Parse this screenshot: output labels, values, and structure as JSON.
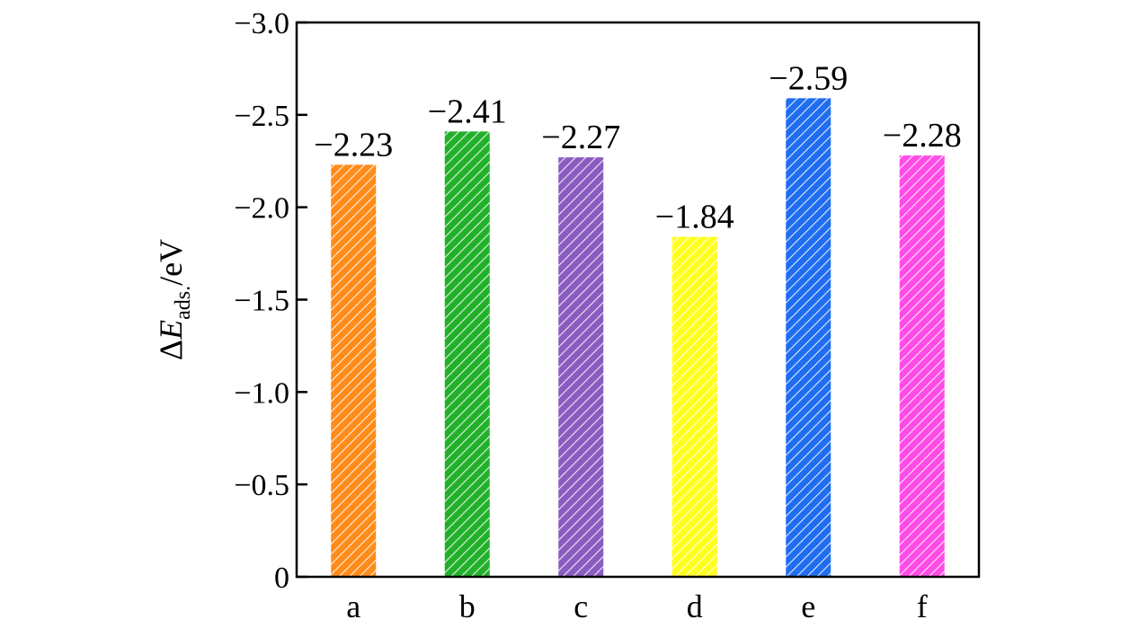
{
  "chart_data": {
    "type": "bar",
    "categories": [
      "a",
      "b",
      "c",
      "d",
      "e",
      "f"
    ],
    "values": [
      -2.23,
      -2.41,
      -2.27,
      -1.84,
      -2.59,
      -2.28
    ],
    "value_labels": [
      "−2.23",
      "−2.41",
      "−2.27",
      "−1.84",
      "−2.59",
      "−2.28"
    ],
    "colors": [
      "#ff8c1a",
      "#22b02a",
      "#8a5cc0",
      "#ffff1e",
      "#1f6df0",
      "#ff4ce6"
    ],
    "fill_pattern": "diagonal-hatch",
    "ylabel": {
      "delta": "Δ",
      "symbol": "E",
      "subscript": "ads.",
      "unit": "/eV"
    },
    "ylim": [
      0,
      -3.0
    ],
    "y_inverted": true,
    "yticks": [
      0,
      -0.5,
      -1.0,
      -1.5,
      -2.0,
      -2.5,
      -3.0
    ],
    "ytick_labels": [
      "0",
      "−0.5",
      "−1.0",
      "−1.5",
      "−2.0",
      "−2.5",
      "−3.0"
    ],
    "grid": false,
    "legend": "none"
  }
}
